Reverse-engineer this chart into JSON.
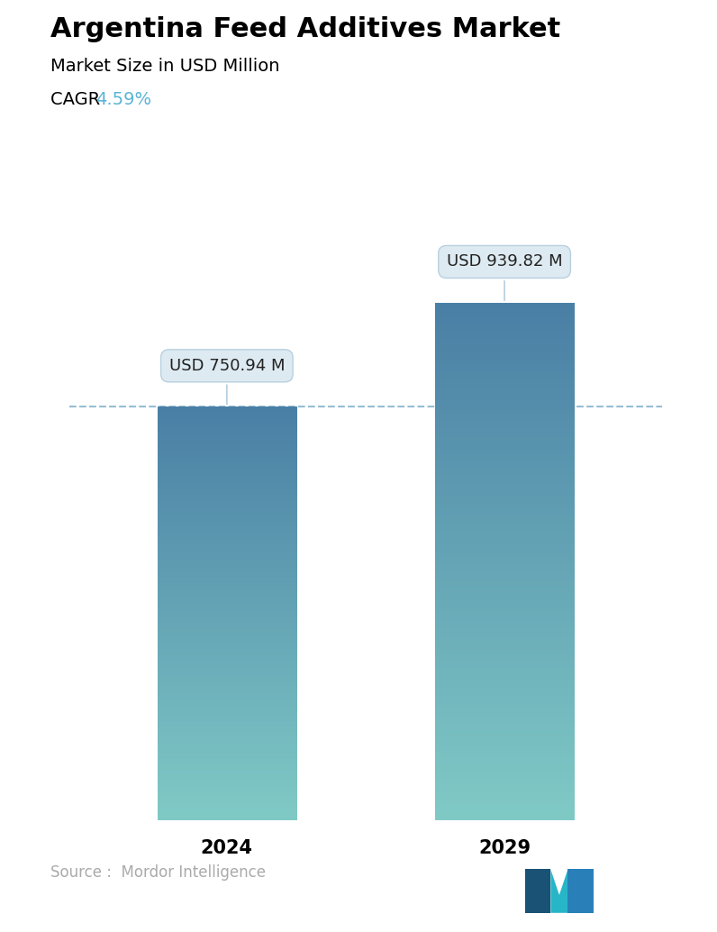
{
  "title": "Argentina Feed Additives Market",
  "subtitle": "Market Size in USD Million",
  "cagr_label": "CAGR ",
  "cagr_value": "4.59%",
  "cagr_color": "#5ab4d6",
  "categories": [
    "2024",
    "2029"
  ],
  "values": [
    750.94,
    939.82
  ],
  "bar_labels": [
    "USD 750.94 M",
    "USD 939.82 M"
  ],
  "bar_top_color": "#4a7fa5",
  "bar_bottom_color": "#80cac6",
  "dashed_line_color": "#7aaec8",
  "dashed_line_value": 750.94,
  "source_text": "Source :  Mordor Intelligence",
  "source_color": "#aaaaaa",
  "background_color": "#ffffff",
  "title_fontsize": 22,
  "subtitle_fontsize": 14,
  "cagr_fontsize": 14,
  "bar_label_fontsize": 13,
  "tick_fontsize": 15,
  "source_fontsize": 12,
  "ylim": [
    0,
    1050
  ],
  "bar_width": 0.22,
  "x_positions": [
    0.28,
    0.72
  ],
  "annotation_box_color": "#dce9f1",
  "annotation_edge_color": "#b5cede",
  "annotation_text_color": "#222222"
}
